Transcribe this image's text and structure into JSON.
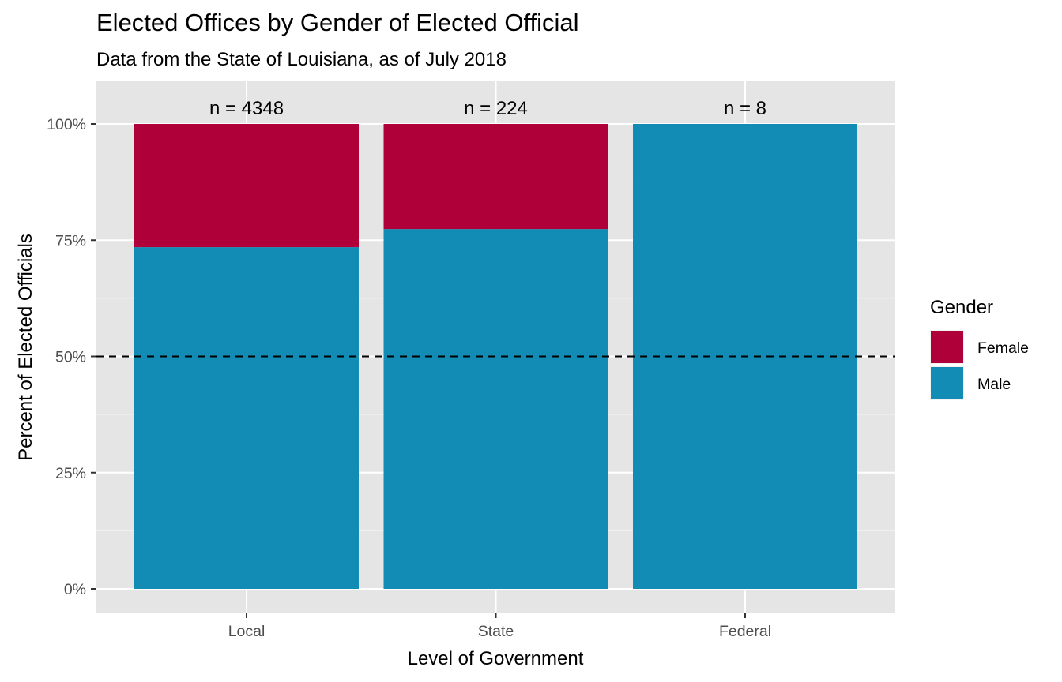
{
  "chart_data": {
    "type": "bar",
    "stacked": true,
    "title": "Elected Offices by Gender of Elected Official",
    "subtitle": "Data from the State of Louisiana, as of July 2018",
    "xlabel": "Level of Government",
    "ylabel": "Percent of Elected Officials",
    "categories": [
      "Local",
      "State",
      "Federal"
    ],
    "series": [
      {
        "name": "Male",
        "color": "#138cb5",
        "values": [
          73.5,
          77.4,
          100.0
        ]
      },
      {
        "name": "Female",
        "color": "#b0003a",
        "values": [
          26.5,
          22.6,
          0.0
        ]
      }
    ],
    "counts": [
      "n = 4348",
      "n = 224",
      "n = 8"
    ],
    "ylim": [
      0,
      100
    ],
    "yticks": [
      0,
      25,
      50,
      75,
      100
    ],
    "ytick_labels": [
      "0%",
      "25%",
      "50%",
      "75%",
      "100%"
    ],
    "reference_line": {
      "y": 50,
      "style": "dashed"
    },
    "grid": true,
    "legend": {
      "title": "Gender",
      "position": "right",
      "items": [
        {
          "label": "Female",
          "color": "#b0003a"
        },
        {
          "label": "Male",
          "color": "#138cb5"
        }
      ]
    }
  }
}
